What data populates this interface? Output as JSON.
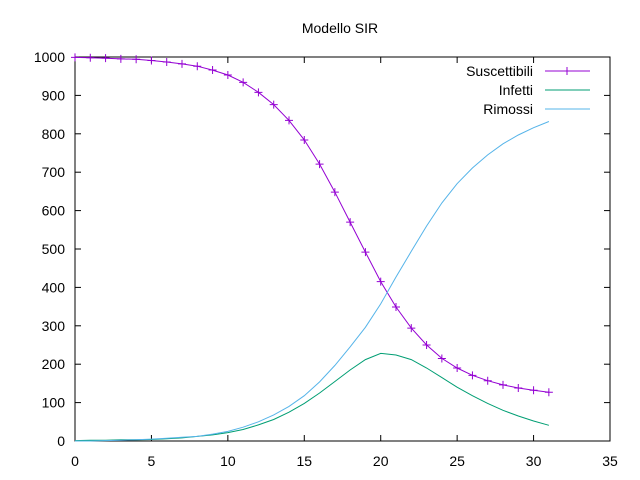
{
  "chart_data": {
    "type": "line",
    "title": "Modello SIR",
    "xlabel": "",
    "ylabel": "",
    "xlim": [
      0,
      35
    ],
    "ylim": [
      0,
      1000
    ],
    "x_ticks": [
      0,
      5,
      10,
      15,
      20,
      25,
      30,
      35
    ],
    "y_ticks": [
      0,
      100,
      200,
      300,
      400,
      500,
      600,
      700,
      800,
      900,
      1000
    ],
    "grid": false,
    "legend_position": "top-right",
    "x": [
      0,
      1,
      2,
      3,
      4,
      5,
      6,
      7,
      8,
      9,
      10,
      11,
      12,
      13,
      14,
      15,
      16,
      17,
      18,
      19,
      20,
      21,
      22,
      23,
      24,
      25,
      26,
      27,
      28,
      29,
      30,
      31
    ],
    "series": [
      {
        "name": "Suscettibili",
        "color": "#9400d3",
        "marker": "plus",
        "values": [
          999,
          998,
          997,
          995,
          994,
          991,
          987,
          982,
          976,
          966,
          953,
          934,
          908,
          876,
          835,
          784,
          721,
          648,
          570,
          492,
          415,
          349,
          294,
          250,
          215,
          190,
          171,
          157,
          146,
          138,
          132,
          127
        ]
      },
      {
        "name": "Infetti",
        "color": "#009e73",
        "marker": "none",
        "values": [
          1,
          2,
          2,
          3,
          3,
          4,
          6,
          8,
          12,
          16,
          22,
          30,
          42,
          56,
          75,
          98,
          125,
          155,
          185,
          212,
          228,
          224,
          212,
          190,
          165,
          140,
          118,
          98,
          80,
          65,
          52,
          41
        ]
      },
      {
        "name": "Rimossi",
        "color": "#56b4e9",
        "marker": "none",
        "values": [
          0,
          0,
          1,
          2,
          3,
          5,
          7,
          10,
          12,
          18,
          25,
          36,
          50,
          68,
          90,
          118,
          154,
          197,
          245,
          296,
          357,
          427,
          494,
          560,
          620,
          670,
          711,
          745,
          774,
          797,
          816,
          832
        ]
      }
    ]
  }
}
